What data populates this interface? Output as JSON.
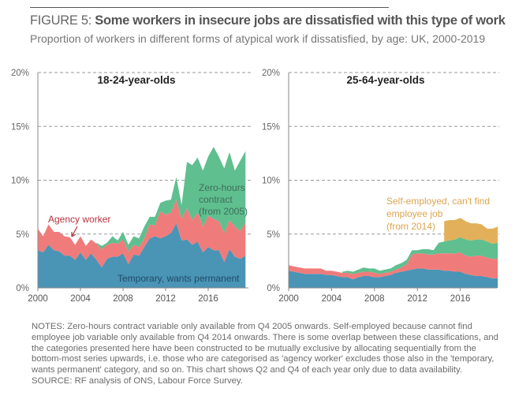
{
  "figure": {
    "label": "FIGURE 5:",
    "title": "Some workers in insecure jobs are dissatisfied with this type of work",
    "subtitle": "Proportion of workers in different forms of atypical work if dissatisfied, by age: UK, 2000-2019",
    "notes": "NOTES: Zero-hours contract variable only available from Q4 2005 onwards. Self-employed because cannot find employee job variable only available from Q4 2014 onwards. There is some overlap between these classifications, and the categories presented here have been constructed to be mutually exclusive by allocating sequentially from the bottom-most series upwards, i.e. those who are categorised as 'agency worker' excludes those also in the 'temporary, wants permanent' category, and so on. This chart shows Q2 and Q4 of each year only due to data availability.",
    "source": "SOURCE: RF analysis of ONS, Labour Force Survey."
  },
  "colors": {
    "temporary": "#4a94b6",
    "agency": "#f07b7b",
    "zero_hours": "#5fbf8f",
    "self_employed": "#e2b05b"
  },
  "chart_data": [
    {
      "type": "area",
      "stacked": true,
      "title": "18-24-year-olds",
      "x": [
        2000,
        2000.5,
        2001,
        2001.5,
        2002,
        2002.5,
        2003,
        2003.5,
        2004,
        2004.5,
        2005,
        2005.5,
        2006,
        2006.5,
        2007,
        2007.5,
        2008,
        2008.5,
        2009,
        2009.5,
        2010,
        2010.5,
        2011,
        2011.5,
        2012,
        2012.5,
        2013,
        2013.5,
        2014,
        2014.5,
        2015,
        2015.5,
        2016,
        2016.5,
        2017,
        2017.5,
        2018,
        2018.5,
        2019,
        2019.5
      ],
      "xticks": [
        "2000",
        "2004",
        "2008",
        "2012",
        "2016"
      ],
      "yticks": [
        "0%",
        "5%",
        "10%",
        "15%",
        "20%"
      ],
      "ylim": [
        0,
        20
      ],
      "grid": "dashed horizontal",
      "series": [
        {
          "key": "temporary",
          "name": "Temporary, wants permanent",
          "values": [
            3.5,
            3.3,
            4.0,
            3.5,
            3.4,
            3.0,
            3.0,
            2.6,
            3.3,
            2.6,
            3.2,
            2.6,
            1.9,
            2.7,
            2.9,
            2.9,
            3.2,
            2.2,
            3.1,
            3.0,
            3.8,
            4.6,
            4.8,
            4.6,
            4.8,
            5.1,
            6.0,
            4.4,
            4.5,
            4.0,
            4.3,
            3.3,
            3.8,
            3.5,
            3.5,
            2.4,
            3.6,
            2.9,
            2.7,
            3.0
          ]
        },
        {
          "key": "agency",
          "name": "Agency worker",
          "values": [
            2.0,
            1.5,
            1.9,
            1.7,
            1.8,
            1.8,
            1.7,
            1.4,
            1.5,
            1.3,
            1.3,
            1.5,
            1.7,
            1.3,
            1.3,
            1.2,
            1.3,
            1.2,
            0.9,
            0.8,
            0.8,
            1.3,
            1.0,
            2.5,
            2.0,
            1.9,
            2.2,
            2.0,
            2.9,
            2.3,
            2.7,
            2.4,
            2.9,
            2.9,
            2.7,
            2.7,
            2.7,
            2.8,
            2.6,
            3.1
          ]
        },
        {
          "key": "zero_hours",
          "name": "Zero-hours contract (from 2005)",
          "values": [
            null,
            null,
            null,
            null,
            null,
            null,
            null,
            null,
            null,
            null,
            null,
            0.1,
            0.3,
            0.2,
            0.6,
            0.3,
            0.7,
            0.6,
            0.8,
            0.8,
            1.1,
            0.7,
            0.8,
            0.8,
            1.3,
            1.2,
            2.1,
            1.3,
            4.3,
            5.1,
            5.1,
            5.2,
            5.5,
            6.7,
            6.0,
            6.0,
            6.3,
            5.2,
            6.5,
            6.6
          ]
        }
      ],
      "annotations": {
        "agency": "Agency worker",
        "zero_hours_1": "Zero-hours",
        "zero_hours_2": "contract",
        "zero_hours_3": "(from 2005)",
        "temporary": "Temporary, wants permanent"
      }
    },
    {
      "type": "area",
      "stacked": true,
      "title": "25-64-year-olds",
      "x": [
        2000,
        2000.5,
        2001,
        2001.5,
        2002,
        2002.5,
        2003,
        2003.5,
        2004,
        2004.5,
        2005,
        2005.5,
        2006,
        2006.5,
        2007,
        2007.5,
        2008,
        2008.5,
        2009,
        2009.5,
        2010,
        2010.5,
        2011,
        2011.5,
        2012,
        2012.5,
        2013,
        2013.5,
        2014,
        2014.5,
        2015,
        2015.5,
        2016,
        2016.5,
        2017,
        2017.5,
        2018,
        2018.5,
        2019,
        2019.5
      ],
      "xticks": [
        "2000",
        "2004",
        "2008",
        "2012",
        "2016"
      ],
      "yticks": [
        "0%",
        "5%",
        "10%",
        "15%",
        "20%"
      ],
      "ylim": [
        0,
        20
      ],
      "grid": "dashed horizontal",
      "series": [
        {
          "key": "temporary",
          "name": "Temporary, wants permanent",
          "values": [
            1.6,
            1.5,
            1.4,
            1.3,
            1.3,
            1.3,
            1.3,
            1.2,
            1.2,
            1.1,
            1.0,
            1.0,
            0.8,
            1.0,
            1.1,
            1.1,
            1.0,
            1.0,
            1.1,
            1.2,
            1.4,
            1.5,
            1.6,
            1.7,
            1.8,
            1.8,
            1.7,
            1.7,
            1.7,
            1.6,
            1.6,
            1.5,
            1.5,
            1.3,
            1.2,
            1.1,
            1.1,
            1.0,
            0.9,
            0.9
          ]
        },
        {
          "key": "agency",
          "name": "Agency worker",
          "values": [
            0.5,
            0.5,
            0.5,
            0.5,
            0.5,
            0.5,
            0.5,
            0.4,
            0.4,
            0.4,
            0.4,
            0.4,
            0.5,
            0.4,
            0.4,
            0.4,
            0.4,
            0.3,
            0.3,
            0.3,
            0.3,
            0.4,
            0.6,
            1.4,
            1.4,
            1.4,
            1.4,
            1.4,
            1.5,
            1.6,
            1.6,
            1.7,
            1.8,
            1.7,
            1.7,
            1.9,
            1.9,
            1.8,
            1.8,
            1.8
          ]
        },
        {
          "key": "zero_hours",
          "name": "Zero-hours contract",
          "values": [
            null,
            null,
            null,
            null,
            null,
            null,
            null,
            null,
            null,
            null,
            0.1,
            0.2,
            0.2,
            0.3,
            0.4,
            0.3,
            0.4,
            0.3,
            0.3,
            0.3,
            0.4,
            0.4,
            0.4,
            0.4,
            0.3,
            0.4,
            0.5,
            0.4,
            1.0,
            1.1,
            1.2,
            1.3,
            1.4,
            1.5,
            1.5,
            1.5,
            1.5,
            1.5,
            1.4,
            1.5
          ]
        },
        {
          "key": "self_employed",
          "name": "Self-employed, can't find employee job (from 2014)",
          "values": [
            null,
            null,
            null,
            null,
            null,
            null,
            null,
            null,
            null,
            null,
            null,
            null,
            null,
            null,
            null,
            null,
            null,
            null,
            null,
            null,
            null,
            null,
            null,
            null,
            null,
            null,
            null,
            null,
            null,
            1.9,
            1.9,
            1.8,
            1.8,
            1.7,
            1.6,
            1.5,
            1.4,
            1.2,
            1.4,
            1.5
          ]
        }
      ],
      "annotations": {
        "self_employed_1": "Self-employed, can't find",
        "self_employed_2": "employee job",
        "self_employed_3": "(from 2014)"
      }
    }
  ]
}
